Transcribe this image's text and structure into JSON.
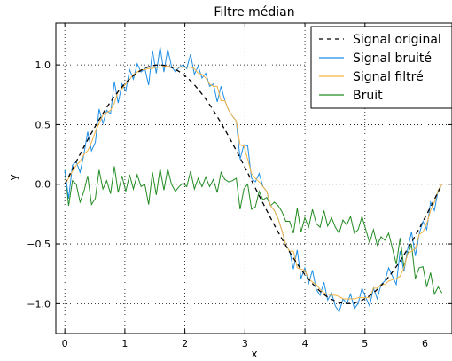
{
  "chart_data": {
    "type": "line",
    "title": "Filtre médian",
    "xlabel": "x",
    "ylabel": "y",
    "xlim": [
      -0.15,
      6.45
    ],
    "ylim": [
      -1.25,
      1.35
    ],
    "grid": true,
    "legend_position": "top-right",
    "xticks": [
      0,
      1,
      2,
      3,
      4,
      5,
      6
    ],
    "xtick_labels": [
      "0",
      "1",
      "2",
      "3",
      "4",
      "5",
      "6"
    ],
    "yticks": [
      -1.0,
      -0.5,
      0.0,
      0.5,
      1.0
    ],
    "ytick_labels": [
      "−1.0",
      "−0.5",
      "0.0",
      "0.5",
      "1.0"
    ],
    "series": [
      {
        "name": "Signal original",
        "style": "dashed",
        "color": "#000000",
        "function": "sin(x)",
        "x_range": [
          0,
          6.2832
        ],
        "n_points": 100
      },
      {
        "name": "Signal bruité",
        "style": "solid",
        "color": "#1f8fe6",
        "x_range": [
          0,
          6.2832
        ],
        "values": [
          0.12,
          -0.12,
          0.16,
          0.19,
          0.1,
          0.25,
          0.44,
          0.28,
          0.35,
          0.63,
          0.51,
          0.62,
          0.59,
          0.86,
          0.68,
          0.84,
          0.78,
          0.96,
          0.88,
          1.01,
          0.94,
          0.97,
          0.83,
          1.12,
          0.93,
          1.15,
          0.94,
          1.13,
          0.99,
          0.94,
          0.98,
          1.0,
          0.97,
          1.09,
          0.92,
          0.99,
          0.89,
          0.93,
          0.82,
          0.84,
          0.69,
          0.82,
          0.7,
          0.62,
          0.57,
          0.53,
          0.21,
          0.33,
          0.32,
          0.05,
          0.02,
          0.09,
          -0.02,
          -0.06,
          -0.18,
          -0.22,
          -0.29,
          -0.39,
          -0.51,
          -0.56,
          -0.71,
          -0.55,
          -0.79,
          -0.7,
          -0.83,
          -0.72,
          -0.88,
          -0.93,
          -0.82,
          -0.97,
          -0.91,
          -1.02,
          -1.07,
          -0.96,
          -1.0,
          -0.92,
          -1.04,
          -1.0,
          -0.87,
          -0.95,
          -1.02,
          -0.87,
          -0.96,
          -0.84,
          -0.81,
          -0.7,
          -0.77,
          -0.84,
          -0.56,
          -0.73,
          -0.54,
          -0.4,
          -0.6,
          -0.42,
          -0.31,
          -0.38,
          -0.15,
          -0.22,
          -0.05,
          0.0
        ]
      },
      {
        "name": "Signal filtré",
        "style": "solid",
        "color": "#f5b342",
        "x_range": [
          0,
          6.2832
        ],
        "values": [
          0.0,
          0.05,
          0.11,
          0.16,
          0.19,
          0.25,
          0.28,
          0.35,
          0.44,
          0.51,
          0.58,
          0.6,
          0.62,
          0.68,
          0.78,
          0.8,
          0.84,
          0.88,
          0.92,
          0.94,
          0.96,
          0.96,
          0.97,
          0.97,
          0.98,
          0.98,
          0.99,
          0.99,
          0.98,
          0.98,
          0.98,
          0.98,
          0.98,
          0.98,
          0.97,
          0.93,
          0.92,
          0.89,
          0.84,
          0.82,
          0.82,
          0.7,
          0.7,
          0.62,
          0.57,
          0.53,
          0.33,
          0.32,
          0.21,
          0.09,
          0.05,
          0.02,
          -0.02,
          -0.06,
          -0.18,
          -0.22,
          -0.29,
          -0.39,
          -0.51,
          -0.56,
          -0.56,
          -0.7,
          -0.71,
          -0.72,
          -0.79,
          -0.82,
          -0.84,
          -0.88,
          -0.91,
          -0.92,
          -0.93,
          -0.93,
          -0.94,
          -0.96,
          -0.96,
          -0.96,
          -0.96,
          -0.95,
          -0.95,
          -0.95,
          -0.95,
          -0.87,
          -0.87,
          -0.84,
          -0.84,
          -0.81,
          -0.8,
          -0.79,
          -0.77,
          -0.7,
          -0.58,
          -0.56,
          -0.54,
          -0.42,
          -0.4,
          -0.33,
          -0.22,
          -0.15,
          -0.05,
          0.0
        ]
      },
      {
        "name": "Bruit",
        "style": "solid",
        "color": "#228b22",
        "x_range": [
          0,
          6.2832
        ],
        "values": [
          0.12,
          -0.18,
          0.03,
          0.0,
          -0.15,
          -0.06,
          0.07,
          -0.17,
          -0.12,
          0.12,
          -0.04,
          0.03,
          -0.08,
          0.15,
          -0.07,
          0.07,
          -0.06,
          0.08,
          -0.04,
          0.08,
          -0.02,
          -0.0,
          -0.17,
          0.1,
          -0.09,
          0.13,
          -0.05,
          0.13,
          -0.0,
          -0.06,
          -0.02,
          0.01,
          -0.02,
          0.11,
          -0.04,
          0.05,
          -0.02,
          0.06,
          -0.02,
          0.04,
          -0.07,
          0.1,
          0.04,
          0.02,
          0.03,
          0.05,
          -0.21,
          -0.04,
          0.0,
          -0.21,
          -0.19,
          -0.06,
          -0.13,
          -0.11,
          -0.18,
          -0.15,
          -0.18,
          -0.23,
          -0.31,
          -0.31,
          -0.41,
          -0.2,
          -0.4,
          -0.28,
          -0.36,
          -0.21,
          -0.33,
          -0.36,
          -0.22,
          -0.35,
          -0.28,
          -0.36,
          -0.41,
          -0.3,
          -0.34,
          -0.27,
          -0.41,
          -0.38,
          -0.27,
          -0.38,
          -0.49,
          -0.38,
          -0.51,
          -0.44,
          -0.47,
          -0.41,
          -0.54,
          -0.67,
          -0.45,
          -0.69,
          -0.58,
          -0.51,
          -0.79,
          -0.7,
          -0.69,
          -0.86,
          -0.74,
          -0.92,
          -0.86,
          -0.91
        ]
      }
    ]
  }
}
